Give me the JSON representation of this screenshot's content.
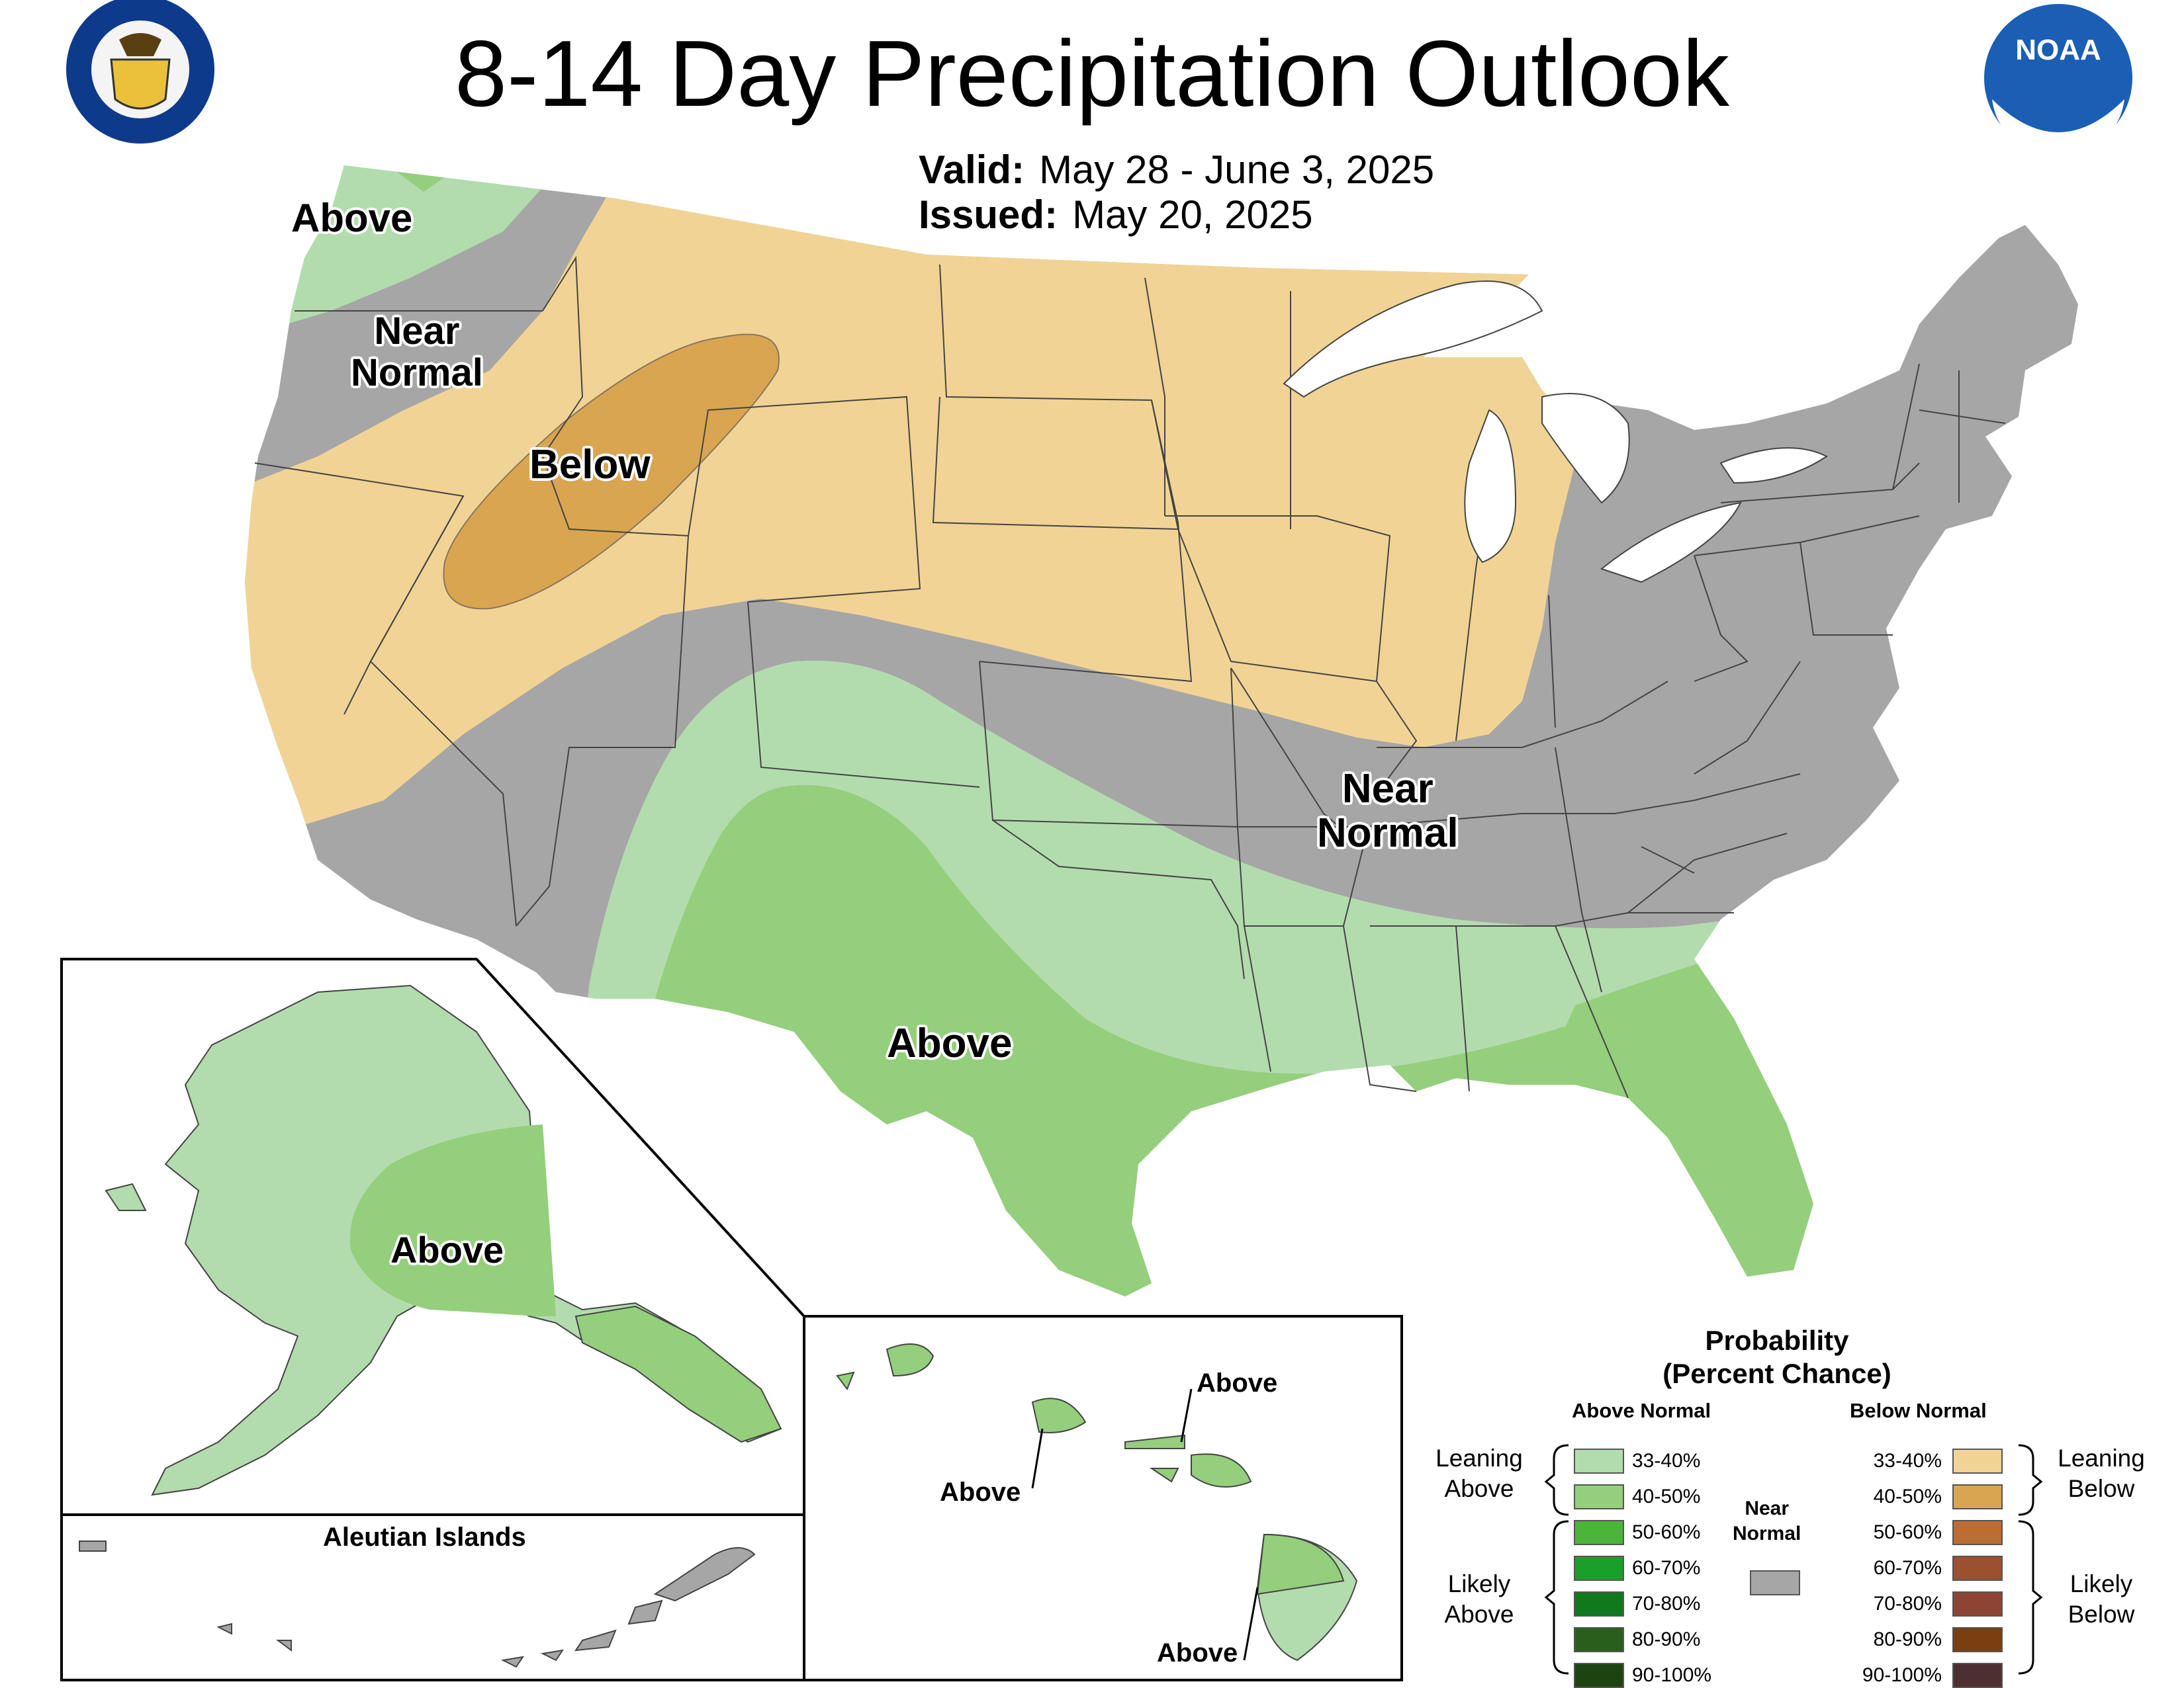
{
  "header": {
    "title": "8-14 Day Precipitation Outlook",
    "valid_label": "Valid:",
    "valid_value": "May 28 - June 3, 2025",
    "issued_label": "Issued:",
    "issued_value": "May 20, 2025"
  },
  "logos": {
    "commerce": "department-of-commerce-seal",
    "noaa": "noaa-logo",
    "noaa_text": "NOAA"
  },
  "regions": {
    "northwest_above": "Above",
    "west_near": "Near\nNormal",
    "west_below": "Below",
    "central_near": "Near\nNormal",
    "south_above": "Above",
    "alaska_above": "Above",
    "hawaii_above_1": "Above",
    "hawaii_above_2": "Above",
    "hawaii_above_3": "Above"
  },
  "insets": {
    "aleutian_title": "Aleutian Islands"
  },
  "legend": {
    "title_line1": "Probability",
    "title_line2": "(Percent Chance)",
    "above_heading": "Above Normal",
    "below_heading": "Below Normal",
    "near_label": "Near\nNormal",
    "leaning_above": "Leaning\nAbove",
    "likely_above": "Likely\nAbove",
    "leaning_below": "Leaning\nBelow",
    "likely_below": "Likely\nBelow",
    "near_color": "#a6a6a6",
    "above": [
      {
        "label": "33-40%",
        "color": "#b3dcae"
      },
      {
        "label": "40-50%",
        "color": "#94cf7c"
      },
      {
        "label": "50-60%",
        "color": "#4ab538"
      },
      {
        "label": "60-70%",
        "color": "#18a02b"
      },
      {
        "label": "70-80%",
        "color": "#0f7a1c"
      },
      {
        "label": "80-90%",
        "color": "#285f1c"
      },
      {
        "label": "90-100%",
        "color": "#1d4311"
      }
    ],
    "below": [
      {
        "label": "33-40%",
        "color": "#f1d495"
      },
      {
        "label": "40-50%",
        "color": "#d9a550"
      },
      {
        "label": "50-60%",
        "color": "#bc6d34"
      },
      {
        "label": "60-70%",
        "color": "#9c502f"
      },
      {
        "label": "70-80%",
        "color": "#8d4433"
      },
      {
        "label": "80-90%",
        "color": "#7a3e11"
      },
      {
        "label": "90-100%",
        "color": "#4e2f30"
      }
    ]
  }
}
